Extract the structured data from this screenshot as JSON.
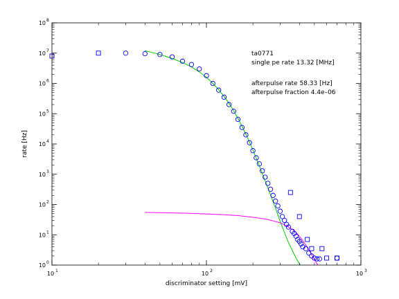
{
  "chart_data": {
    "type": "scatter",
    "title": "",
    "xlabel": "discriminator setting [mV]",
    "ylabel": "rate [Hz]",
    "xscale": "log",
    "yscale": "log",
    "xlim": [
      10,
      1000
    ],
    "ylim": [
      1,
      100000000
    ],
    "x_ticks": [
      {
        "value": 10,
        "base": "10",
        "exp": "1"
      },
      {
        "value": 100,
        "base": "10",
        "exp": "2"
      },
      {
        "value": 1000,
        "base": "10",
        "exp": "3"
      }
    ],
    "y_ticks": [
      {
        "value": 1,
        "base": "10",
        "exp": "0"
      },
      {
        "value": 10,
        "base": "10",
        "exp": "1"
      },
      {
        "value": 100,
        "base": "10",
        "exp": "2"
      },
      {
        "value": 1000,
        "base": "10",
        "exp": "3"
      },
      {
        "value": 10000,
        "base": "10",
        "exp": "4"
      },
      {
        "value": 100000,
        "base": "10",
        "exp": "5"
      },
      {
        "value": 1000000,
        "base": "10",
        "exp": "6"
      },
      {
        "value": 10000000,
        "base": "10",
        "exp": "7"
      },
      {
        "value": 100000000,
        "base": "10",
        "exp": "8"
      }
    ],
    "grid": false,
    "annotations": [
      "ta0771",
      "single pe rate 13.32 [MHz]",
      "afterpulse rate 58.33 [Hz]",
      "afterpulse fraction 4.4e–06"
    ],
    "series": [
      {
        "marker": "square",
        "color": "#0000ff",
        "x": [
          10,
          20,
          350,
          400,
          450,
          480,
          560,
          600,
          700
        ],
        "y": [
          8000000,
          10000000,
          250,
          40,
          7,
          3.5,
          3.5,
          1.7,
          1.7
        ]
      },
      {
        "marker": "circle",
        "color": "#0000ff",
        "x": [
          30,
          40,
          50,
          60,
          70,
          80,
          90,
          100,
          110,
          120,
          130,
          140,
          150,
          160,
          170,
          180,
          190,
          200,
          210,
          220,
          230,
          240,
          250,
          260,
          270,
          280,
          290,
          300,
          310,
          320,
          330,
          340,
          360,
          370,
          380,
          390,
          400,
          410,
          420,
          440,
          460,
          480,
          500,
          520,
          540,
          700
        ],
        "y": [
          10000000,
          9600000,
          9000000,
          7500000,
          5400000,
          4200000,
          3000000,
          1800000,
          1000000,
          600000,
          350000,
          200000,
          120000,
          65000,
          35000,
          20000,
          11000,
          6000,
          3500,
          2200,
          1300,
          800,
          500,
          320,
          200,
          130,
          90,
          60,
          40,
          30,
          22,
          18,
          13,
          11,
          9,
          7,
          6,
          5,
          4,
          3.5,
          2.5,
          2,
          1.7,
          1.6,
          1.6,
          1.7
        ]
      },
      {
        "type": "line",
        "color": "#00cc00",
        "x": [
          40,
          50,
          60,
          70,
          80,
          90,
          100,
          110,
          120,
          130,
          140,
          150,
          160,
          170,
          180,
          190,
          200,
          220,
          240,
          260,
          280,
          300,
          320,
          340,
          360,
          380,
          400,
          420
        ],
        "y": [
          12000000,
          9000000,
          6700000,
          4900000,
          3500000,
          2400000,
          1600000,
          1000000,
          620000,
          370000,
          220000,
          125000,
          70000,
          38000,
          21000,
          11500,
          6300,
          1900,
          600,
          210,
          75,
          28,
          12,
          5.5,
          3,
          1.7,
          1.1,
          0.6
        ]
      },
      {
        "type": "line",
        "color": "#ff00ff",
        "x": [
          40,
          60,
          80,
          100,
          130,
          160,
          200,
          250,
          300,
          330,
          360,
          380,
          400,
          420,
          440,
          460,
          480,
          500,
          520,
          540
        ],
        "y": [
          55,
          53,
          51,
          49,
          46,
          43,
          38,
          32,
          25,
          20,
          15,
          12,
          9,
          6.5,
          4.5,
          3.2,
          2.2,
          1.5,
          1.1,
          0.8
        ]
      }
    ]
  }
}
